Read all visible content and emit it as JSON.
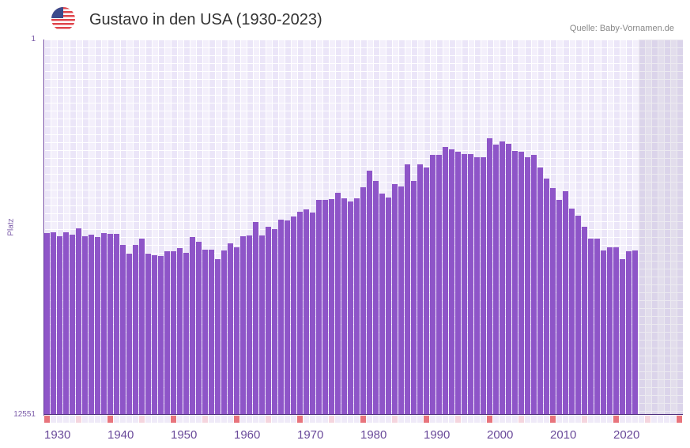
{
  "header": {
    "title": "Gustavo in den USA (1930-2023)",
    "source": "Quelle: Baby-Vornamen.de",
    "flag_icon": "us-flag-icon"
  },
  "colors": {
    "bar": "#8e55c8",
    "decade_marker": "#e8747c",
    "half_decade_marker": "#f5d5de"
  },
  "chart_data": {
    "type": "bar",
    "title": "Gustavo in den USA (1930-2023)",
    "xlabel": "",
    "ylabel": "Platz",
    "ylim": [
      12551,
      1
    ],
    "y_ticks": [
      "1",
      "12551"
    ],
    "x_ticks": [
      "1930",
      "1940",
      "1950",
      "1960",
      "1970",
      "1980",
      "1990",
      "2000",
      "2010",
      "2020"
    ],
    "x_range": [
      1930,
      2030
    ],
    "grid": true,
    "categories": [
      1930,
      1931,
      1932,
      1933,
      1934,
      1935,
      1936,
      1937,
      1938,
      1939,
      1940,
      1941,
      1942,
      1943,
      1944,
      1945,
      1946,
      1947,
      1948,
      1949,
      1950,
      1951,
      1952,
      1953,
      1954,
      1955,
      1956,
      1957,
      1958,
      1959,
      1960,
      1961,
      1962,
      1963,
      1964,
      1965,
      1966,
      1967,
      1968,
      1969,
      1970,
      1971,
      1972,
      1973,
      1974,
      1975,
      1976,
      1977,
      1978,
      1979,
      1980,
      1981,
      1982,
      1983,
      1984,
      1985,
      1986,
      1987,
      1988,
      1989,
      1990,
      1991,
      1992,
      1993,
      1994,
      1995,
      1996,
      1997,
      1998,
      1999,
      2000,
      2001,
      2002,
      2003,
      2004,
      2005,
      2006,
      2007,
      2008,
      2009,
      2010,
      2011,
      2012,
      2013,
      2014,
      2015,
      2016,
      2017,
      2018,
      2019,
      2020,
      2021,
      2022,
      2023
    ],
    "values": [
      6474,
      6447,
      6580,
      6447,
      6527,
      6315,
      6580,
      6527,
      6606,
      6474,
      6500,
      6500,
      6870,
      7161,
      6870,
      6659,
      7161,
      7214,
      7240,
      7082,
      7082,
      6976,
      7135,
      6606,
      6765,
      7029,
      7029,
      7346,
      7055,
      6818,
      6949,
      6580,
      6553,
      6104,
      6553,
      6263,
      6342,
      6025,
      6051,
      5919,
      5761,
      5682,
      5787,
      5364,
      5364,
      5338,
      5126,
      5311,
      5417,
      5311,
      4942,
      4387,
      4730,
      5153,
      5285,
      4836,
      4915,
      4175,
      4730,
      4175,
      4281,
      3858,
      3858,
      3594,
      3673,
      3753,
      3832,
      3832,
      3938,
      3938,
      3304,
      3515,
      3409,
      3488,
      3726,
      3753,
      3938,
      3858,
      4281,
      4651,
      4968,
      5364,
      5074,
      5655,
      5893,
      6263,
      6659,
      6659,
      7055,
      6949,
      6949,
      7346,
      7082,
      7055
    ]
  }
}
